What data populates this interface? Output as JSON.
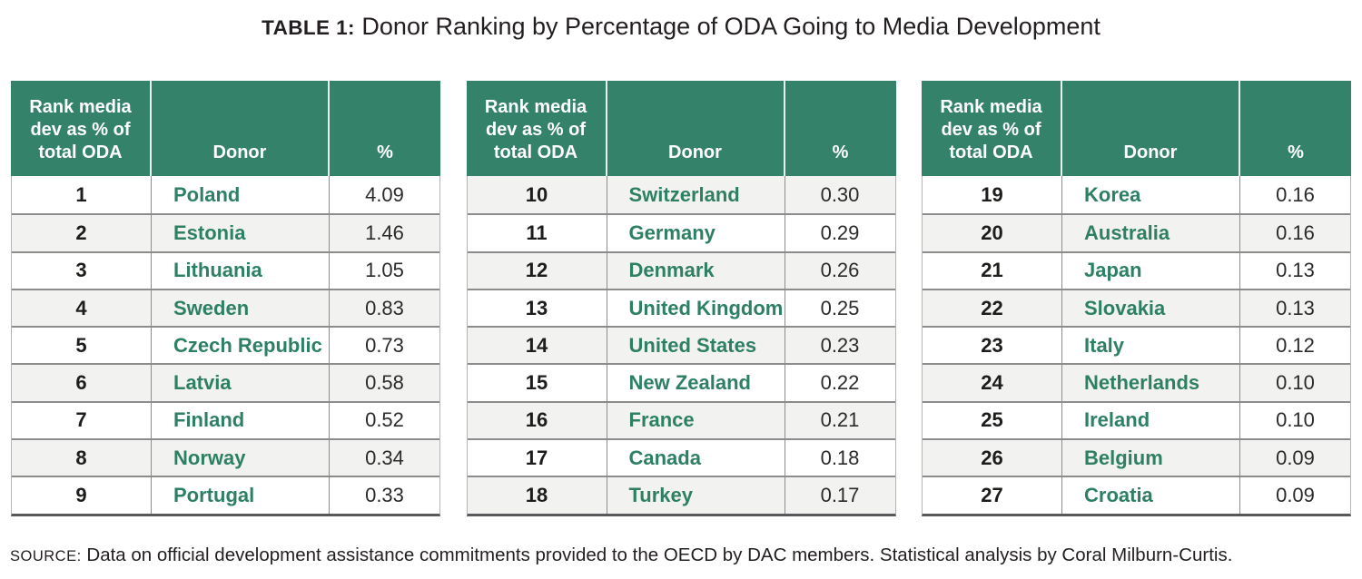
{
  "title": {
    "prefix": "TABLE 1:",
    "text": " Donor Ranking by Percentage of ODA Going to Media Development"
  },
  "columns": [
    "Rank media dev as % of total ODA",
    "Donor",
    "%"
  ],
  "tables": [
    {
      "rows": [
        {
          "rank": "1",
          "donor": "Poland",
          "pct": "4.09"
        },
        {
          "rank": "2",
          "donor": "Estonia",
          "pct": "1.46"
        },
        {
          "rank": "3",
          "donor": "Lithuania",
          "pct": "1.05"
        },
        {
          "rank": "4",
          "donor": "Sweden",
          "pct": "0.83"
        },
        {
          "rank": "5",
          "donor": "Czech Republic",
          "pct": "0.73"
        },
        {
          "rank": "6",
          "donor": "Latvia",
          "pct": "0.58"
        },
        {
          "rank": "7",
          "donor": "Finland",
          "pct": "0.52"
        },
        {
          "rank": "8",
          "donor": "Norway",
          "pct": "0.34"
        },
        {
          "rank": "9",
          "donor": "Portugal",
          "pct": "0.33"
        }
      ]
    },
    {
      "rows": [
        {
          "rank": "10",
          "donor": "Switzerland",
          "pct": "0.30"
        },
        {
          "rank": "11",
          "donor": "Germany",
          "pct": "0.29"
        },
        {
          "rank": "12",
          "donor": "Denmark",
          "pct": "0.26"
        },
        {
          "rank": "13",
          "donor": "United Kingdom",
          "pct": "0.25"
        },
        {
          "rank": "14",
          "donor": "United States",
          "pct": "0.23"
        },
        {
          "rank": "15",
          "donor": "New Zealand",
          "pct": "0.22"
        },
        {
          "rank": "16",
          "donor": "France",
          "pct": "0.21"
        },
        {
          "rank": "17",
          "donor": "Canada",
          "pct": "0.18"
        },
        {
          "rank": "18",
          "donor": "Turkey",
          "pct": "0.17"
        }
      ]
    },
    {
      "rows": [
        {
          "rank": "19",
          "donor": "Korea",
          "pct": "0.16"
        },
        {
          "rank": "20",
          "donor": "Australia",
          "pct": "0.16"
        },
        {
          "rank": "21",
          "donor": "Japan",
          "pct": "0.13"
        },
        {
          "rank": "22",
          "donor": "Slovakia",
          "pct": "0.13"
        },
        {
          "rank": "23",
          "donor": "Italy",
          "pct": "0.12"
        },
        {
          "rank": "24",
          "donor": "Netherlands",
          "pct": "0.10"
        },
        {
          "rank": "25",
          "donor": "Ireland",
          "pct": "0.10"
        },
        {
          "rank": "26",
          "donor": "Belgium",
          "pct": "0.09"
        },
        {
          "rank": "27",
          "donor": "Croatia",
          "pct": "0.09"
        }
      ]
    }
  ],
  "source": {
    "label": "SOURCE:",
    "text": " Data on official development assistance commitments provided to the OECD by DAC members. Statistical analysis by Coral Milburn-Curtis."
  },
  "colors": {
    "header_green": "#35826B",
    "donor_green": "#2E8064",
    "alt_row_gray": "#F2F2F1",
    "row_separator": "#8C8C8C",
    "table_bottom_border": "#58595B"
  }
}
